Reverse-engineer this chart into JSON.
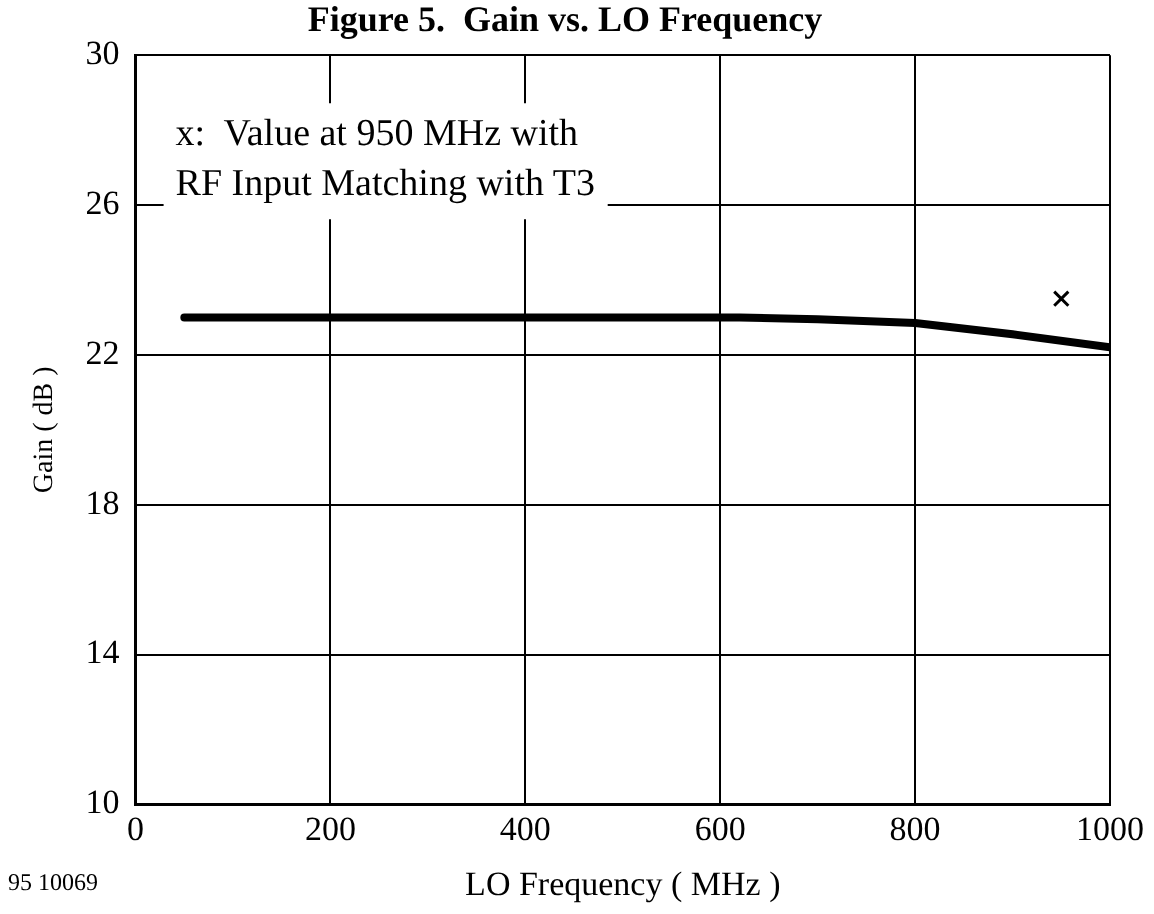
{
  "chart_data": {
    "type": "line",
    "title": "Figure 5.  Gain vs. LO Frequency",
    "xlabel": "LO Frequency ( MHz )",
    "ylabel": "Gain ( dB )",
    "x": [
      50,
      200,
      400,
      600,
      620,
      700,
      800,
      900,
      1000
    ],
    "series": [
      {
        "color": "#000000",
        "values": [
          23.0,
          23.0,
          23.0,
          23.0,
          23.0,
          22.95,
          22.85,
          22.55,
          22.2
        ]
      },
      {
        "type": "scatter",
        "color": "#000000",
        "x": [
          950
        ],
        "values": [
          23.5
        ],
        "marker": "cross"
      }
    ],
    "xlim": [
      0,
      1000
    ],
    "xticks": [
      0,
      200,
      400,
      600,
      800,
      1000
    ],
    "ylim": [
      10,
      30
    ],
    "yticks": [
      10,
      14,
      18,
      22,
      26,
      30
    ],
    "grid": true,
    "legend": false,
    "marker": "none",
    "line_style": "solid",
    "annotations": [
      "x:  Value at 950 MHz with\nRF Input Matching with T3",
      "95 10069"
    ]
  }
}
